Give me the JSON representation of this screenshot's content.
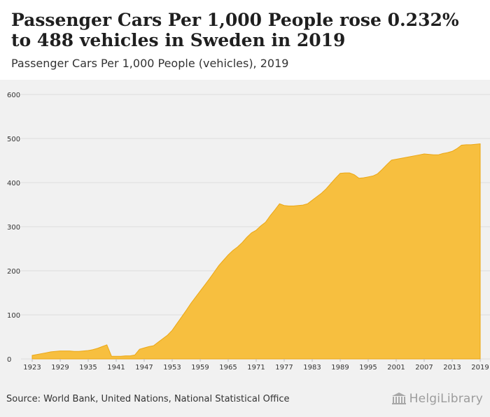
{
  "header": {
    "title": "Passenger Cars Per 1,000 People rose 0.232% to 488 vehicles in Sweden in 2019",
    "subtitle": "Passenger Cars Per 1,000 People (vehicles), 2019"
  },
  "footer": {
    "source": "Source: World Bank, United Nations, National Statistical Office",
    "logo_text": "HelgiLibrary"
  },
  "colors": {
    "fill": "#f7bf3f",
    "stroke": "#eba715",
    "grid": "#dddddd",
    "tick_text": "#333333"
  },
  "chart_data": {
    "type": "area",
    "title": "Passenger Cars Per 1,000 People rose 0.232% to 488 vehicles in Sweden in 2019",
    "subtitle": "Passenger Cars Per 1,000 People (vehicles), 2019",
    "xlabel": "",
    "ylabel": "",
    "ylim": [
      0,
      600
    ],
    "yticks": [
      0,
      100,
      200,
      300,
      400,
      500,
      600
    ],
    "xticks": [
      "1923",
      "1929",
      "1935",
      "1941",
      "1947",
      "1953",
      "1959",
      "1965",
      "1971",
      "1977",
      "1983",
      "1989",
      "1995",
      "2001",
      "2007",
      "2013",
      "2019"
    ],
    "grid": true,
    "series": [
      {
        "name": "Passenger Cars Per 1,000 People (vehicles)",
        "x": [
          1923,
          1924,
          1925,
          1926,
          1927,
          1928,
          1929,
          1930,
          1931,
          1932,
          1933,
          1934,
          1935,
          1936,
          1937,
          1938,
          1939,
          1940,
          1941,
          1942,
          1943,
          1944,
          1945,
          1946,
          1947,
          1948,
          1949,
          1950,
          1951,
          1952,
          1953,
          1954,
          1955,
          1956,
          1957,
          1958,
          1959,
          1960,
          1961,
          1962,
          1963,
          1964,
          1965,
          1966,
          1967,
          1968,
          1969,
          1970,
          1971,
          1972,
          1973,
          1974,
          1975,
          1976,
          1977,
          1978,
          1979,
          1980,
          1981,
          1982,
          1983,
          1984,
          1985,
          1986,
          1987,
          1988,
          1989,
          1990,
          1991,
          1992,
          1993,
          1994,
          1995,
          1996,
          1997,
          1998,
          1999,
          2000,
          2001,
          2002,
          2003,
          2004,
          2005,
          2006,
          2007,
          2008,
          2009,
          2010,
          2011,
          2012,
          2013,
          2014,
          2015,
          2016,
          2017,
          2018,
          2019
        ],
        "values": [
          8,
          10,
          12,
          14,
          16,
          17,
          18,
          18,
          18,
          17,
          17,
          18,
          19,
          21,
          24,
          28,
          32,
          6,
          6,
          6,
          7,
          7,
          9,
          22,
          25,
          28,
          30,
          38,
          46,
          54,
          65,
          80,
          95,
          110,
          126,
          140,
          154,
          168,
          182,
          197,
          212,
          224,
          236,
          246,
          254,
          264,
          276,
          286,
          292,
          302,
          310,
          325,
          338,
          352,
          348,
          347,
          347,
          348,
          349,
          352,
          360,
          368,
          376,
          386,
          398,
          410,
          421,
          422,
          422,
          418,
          410,
          411,
          413,
          415,
          420,
          430,
          441,
          451,
          453,
          455,
          457,
          459,
          461,
          463,
          465,
          464,
          463,
          463,
          466,
          468,
          471,
          477,
          485,
          486,
          486,
          487,
          488
        ]
      }
    ]
  }
}
